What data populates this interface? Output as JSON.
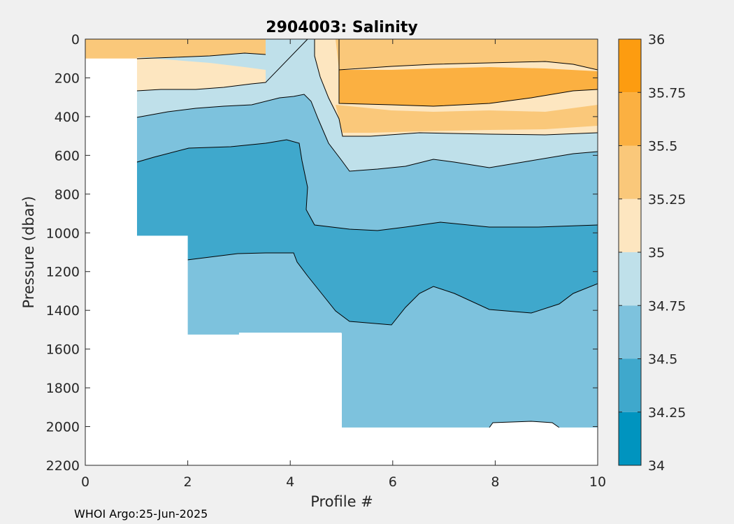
{
  "chart_data": {
    "type": "heatmap",
    "title": "2904003:  Salinity",
    "xlabel": "Profile #",
    "ylabel": "Pressure (dbar)",
    "xlim": [
      0,
      10
    ],
    "ylim": [
      0,
      2200
    ],
    "y_reversed": true,
    "x_ticks": [
      "0",
      "2",
      "4",
      "6",
      "8",
      "10"
    ],
    "y_ticks": [
      "0",
      "200",
      "400",
      "600",
      "800",
      "1000",
      "1200",
      "1400",
      "1600",
      "1800",
      "2000",
      "2200"
    ],
    "colorbar": {
      "range": [
        34,
        36
      ],
      "ticks": [
        "34",
        "34.25",
        "34.5",
        "34.75",
        "35",
        "35.25",
        "35.5",
        "35.75",
        "36"
      ],
      "levels": [
        {
          "from": 34.0,
          "to": 34.25,
          "color": "#0094bf"
        },
        {
          "from": 34.25,
          "to": 34.5,
          "color": "#3fa8cc"
        },
        {
          "from": 34.5,
          "to": 34.75,
          "color": "#7dc2dd"
        },
        {
          "from": 34.75,
          "to": 35.0,
          "color": "#bfe0ea"
        },
        {
          "from": 35.0,
          "to": 35.25,
          "color": "#fde6c0"
        },
        {
          "from": 35.25,
          "to": 35.5,
          "color": "#fac87a"
        },
        {
          "from": 35.5,
          "to": 35.75,
          "color": "#fbb041"
        },
        {
          "from": 35.75,
          "to": 36.0,
          "color": "#fd9c10"
        }
      ]
    },
    "profiles": [
      {
        "x": 0,
        "max_pressure": 100
      },
      {
        "x": 1,
        "max_pressure": 1015
      },
      {
        "x": 2,
        "max_pressure": 1525
      },
      {
        "x": 3,
        "max_pressure": 1515
      },
      {
        "x": 4,
        "max_pressure": 1515
      },
      {
        "x": 5,
        "max_pressure": 2005
      },
      {
        "x": 6,
        "max_pressure": 2005
      },
      {
        "x": 7,
        "max_pressure": 2005
      },
      {
        "x": 8,
        "max_pressure": 2005
      },
      {
        "x": 9,
        "max_pressure": 2005
      },
      {
        "x": 10,
        "max_pressure": 2005
      }
    ]
  },
  "footer": "WHOI Argo:25-Jun-2025"
}
